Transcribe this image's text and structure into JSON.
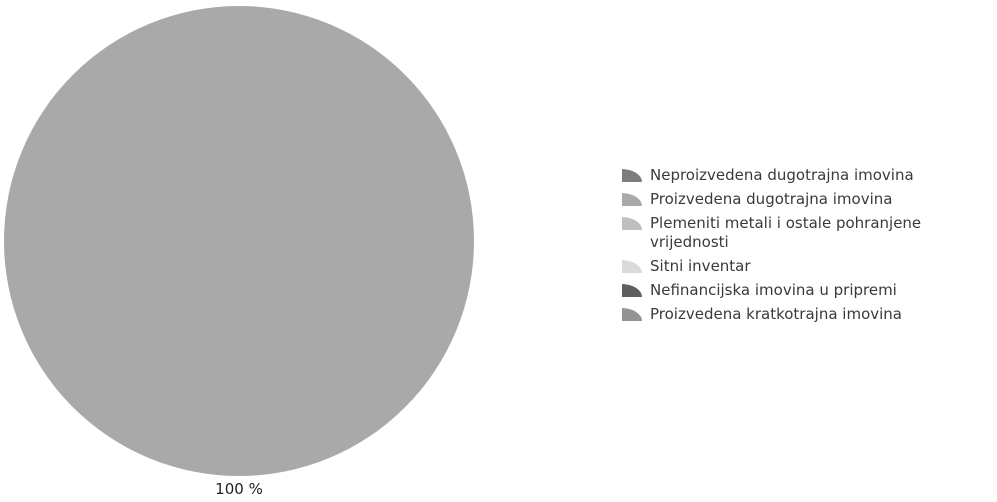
{
  "chart_data": {
    "type": "pie",
    "slices": [
      {
        "label": "Neproizvedena dugotrajna imovina",
        "value": 0,
        "color": "#7d7d7d"
      },
      {
        "label": "Proizvedena dugotrajna imovina",
        "value": 100,
        "color": "#a9a9a9"
      },
      {
        "label": "Plemeniti metali i ostale pohranjene vrijednosti",
        "value": 0,
        "color": "#bfbfbf"
      },
      {
        "label": "Sitni inventar",
        "value": 0,
        "color": "#dadada"
      },
      {
        "label": "Nefinancijska imovina u pripremi",
        "value": 0,
        "color": "#5e5e5e"
      },
      {
        "label": "Proizvedena kratkotrajna imovina",
        "value": 0,
        "color": "#939393"
      }
    ],
    "data_labels": [
      "100 %"
    ],
    "legend_position": "right"
  }
}
